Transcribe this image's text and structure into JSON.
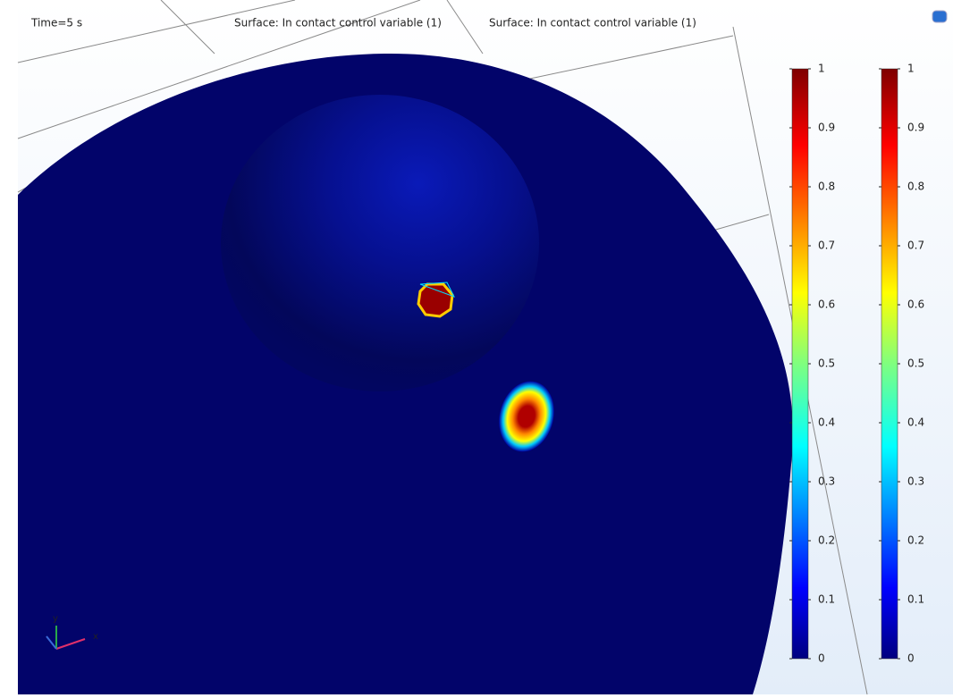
{
  "header": {
    "time": "Time=5 s",
    "titles": [
      "Surface: In contact control variable (1)",
      "Surface: In contact control variable (1)"
    ]
  },
  "colorbars": [
    {
      "range": [
        0,
        1
      ],
      "ticks": [
        0,
        0.1,
        0.2,
        0.3,
        0.4,
        0.5,
        0.6,
        0.7,
        0.8,
        0.9,
        1
      ]
    },
    {
      "range": [
        0,
        1
      ],
      "ticks": [
        0,
        0.1,
        0.2,
        0.3,
        0.4,
        0.5,
        0.6,
        0.7,
        0.8,
        0.9,
        1
      ]
    }
  ],
  "triad": {
    "y": "y",
    "x": "x"
  }
}
